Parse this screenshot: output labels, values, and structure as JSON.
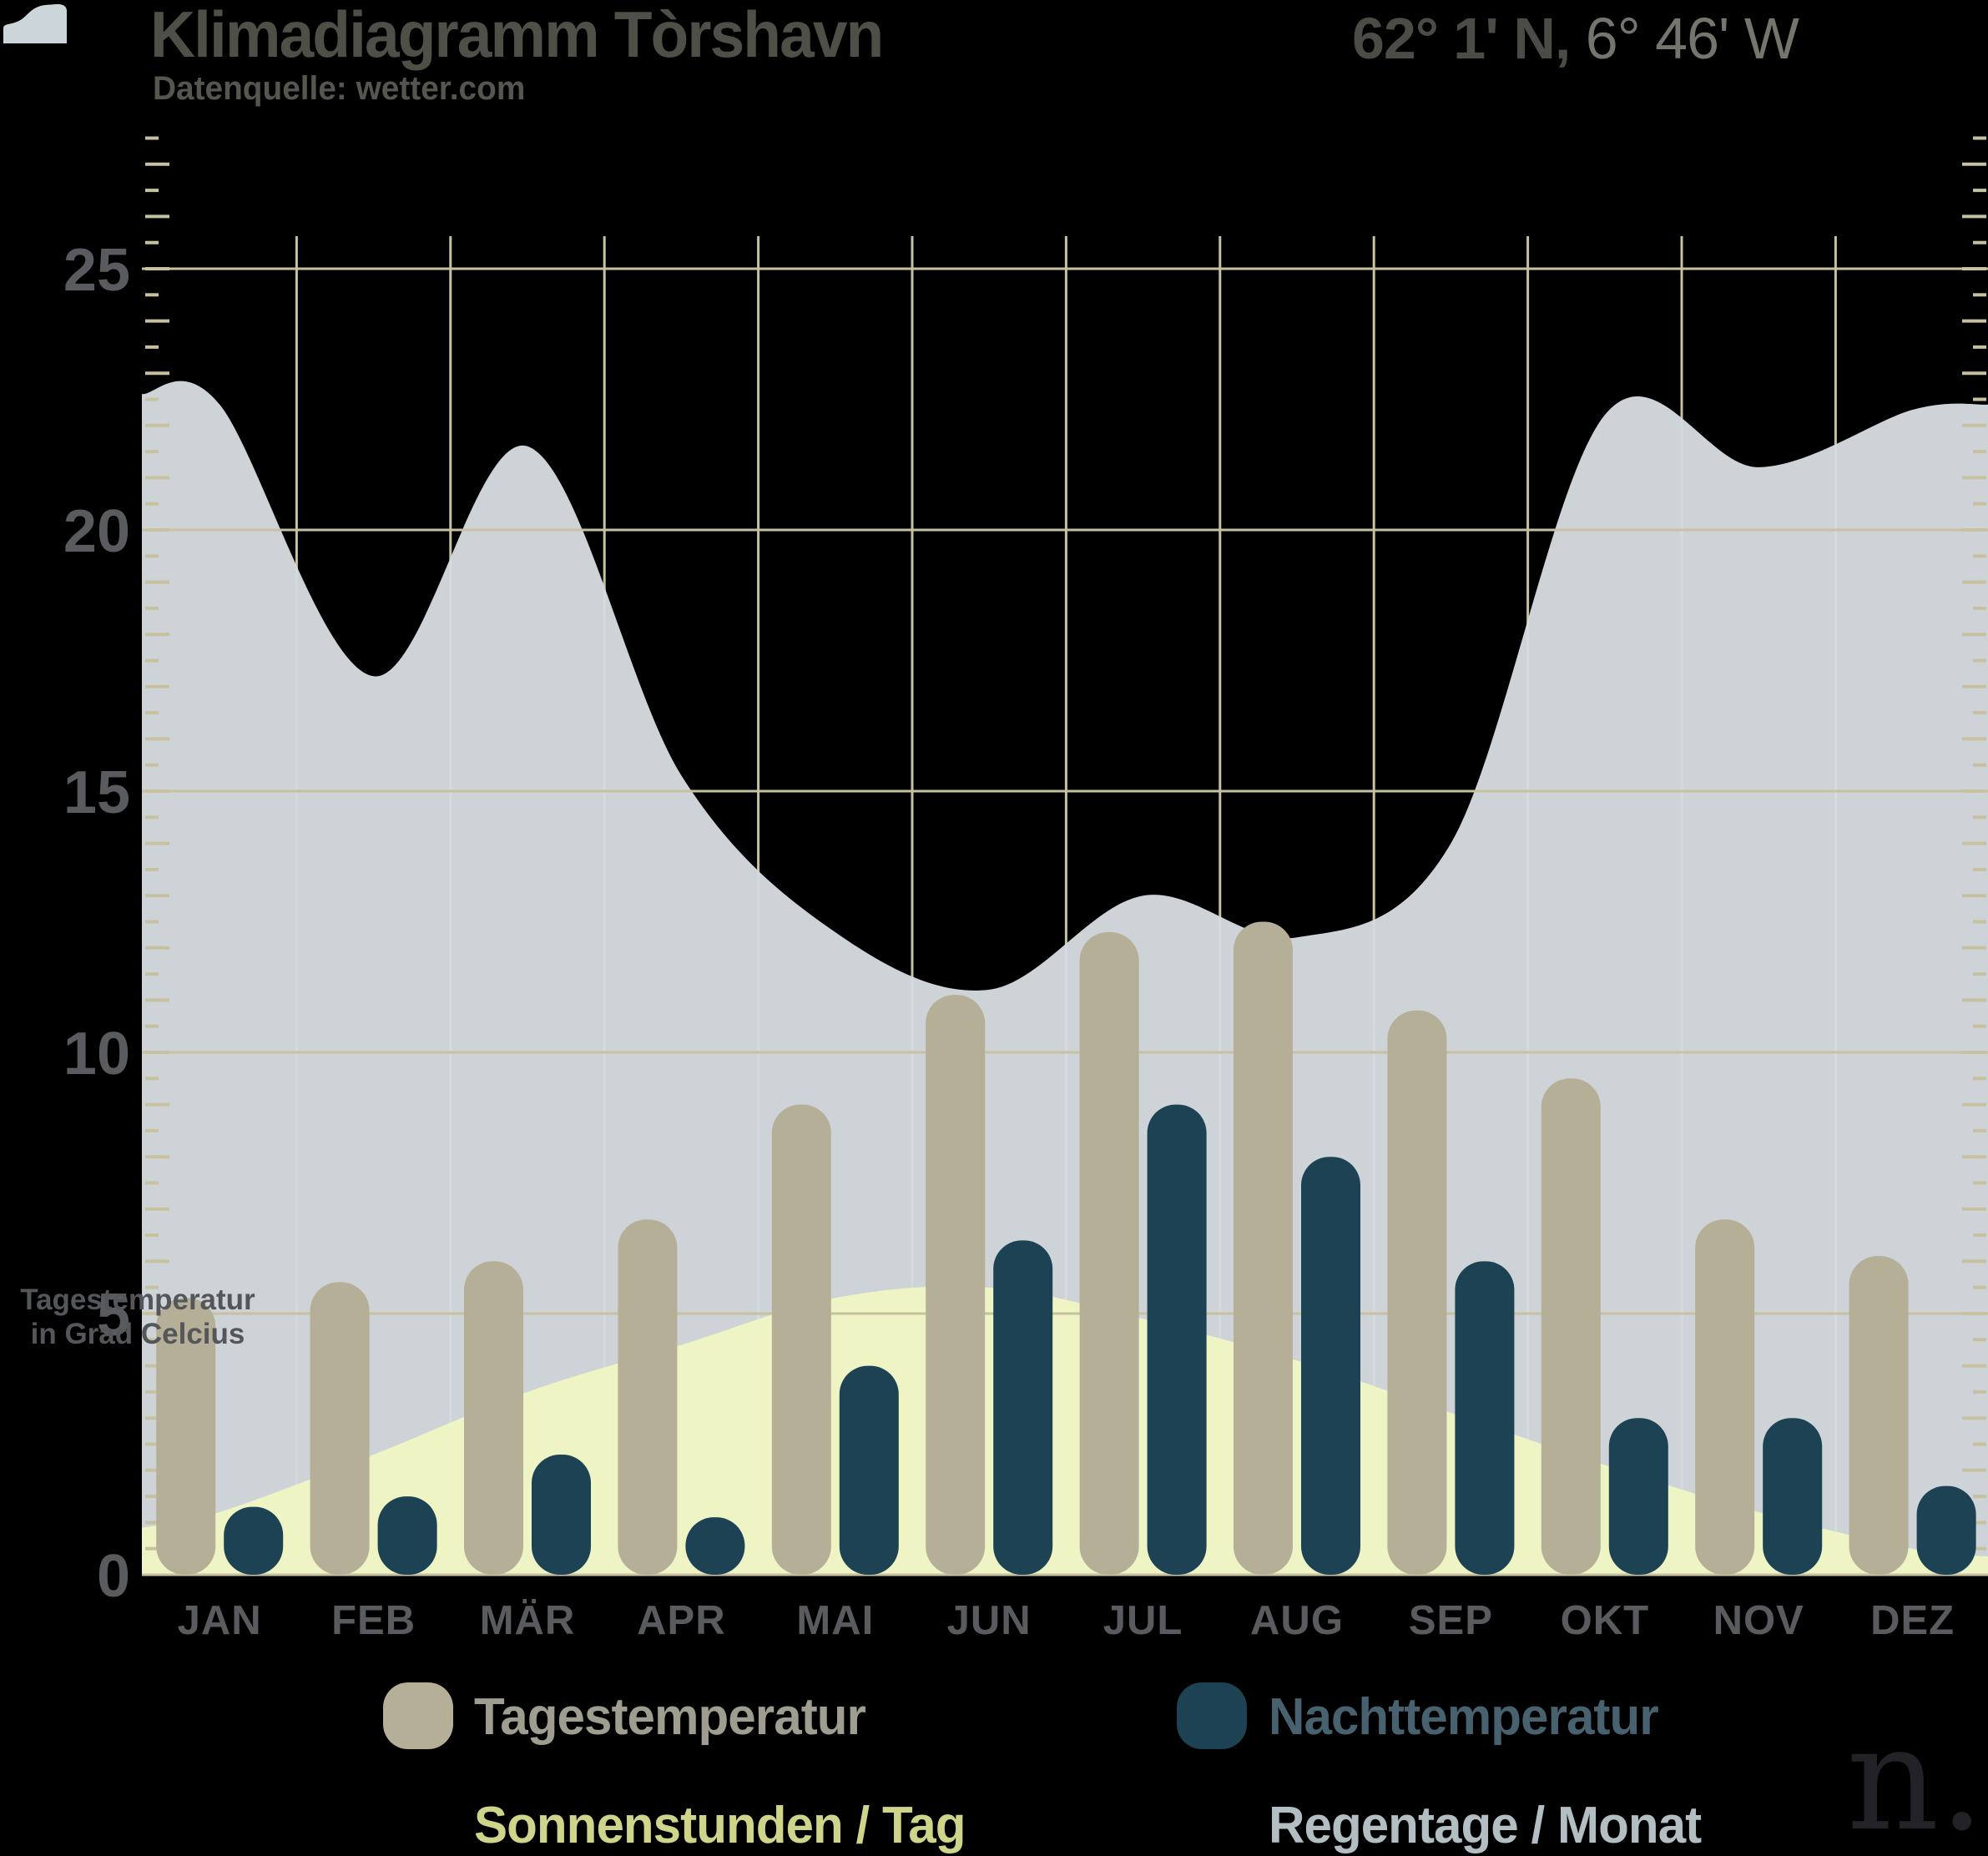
{
  "header": {
    "title": "Klimadiagramm Tòrshavn",
    "subtitle": "Datenquelle: wetter.com",
    "coordinates_bold": "62° 1' N,",
    "coordinates_light": " 6° 46' W"
  },
  "axis_caption": {
    "line1": "Tagestemperatur",
    "line2": "in Grad Celcius"
  },
  "legend": {
    "items": [
      {
        "label": "Tagestemperatur",
        "swatch": "bar-pill",
        "color": "#b4af96",
        "text_color": "#9e9d90"
      },
      {
        "label": "Nachttemperatur",
        "swatch": "bar-pill",
        "color": "#1c4254",
        "text_color": "#48616e"
      },
      {
        "label": "Sonnenstunden / Tag",
        "swatch": "area-wave",
        "color": "#ced489",
        "text_color": "#ced489"
      },
      {
        "label": "Regentage / Monat",
        "swatch": "area-wave",
        "color": "#ccd5d9",
        "text_color": "#b3bec3"
      }
    ]
  },
  "watermark": "n.",
  "chart_data": {
    "type": "bar+area",
    "title": "Klimadiagramm Tòrshavn",
    "categories": [
      "JAN",
      "FEB",
      "MÄR",
      "APR",
      "MAI",
      "JUN",
      "JUL",
      "AUG",
      "SEP",
      "OKT",
      "NOV",
      "DEZ"
    ],
    "series": [
      {
        "name": "Tagestemperatur",
        "type": "bar",
        "color": "#b4af96",
        "values": [
          5.3,
          5.6,
          6.0,
          6.8,
          9.0,
          11.1,
          12.3,
          12.5,
          10.8,
          9.5,
          6.8,
          6.1
        ]
      },
      {
        "name": "Nachttemperatur",
        "type": "bar",
        "color": "#1c4254",
        "values": [
          1.3,
          1.5,
          2.3,
          1.1,
          4.0,
          6.4,
          9.0,
          8.0,
          6.0,
          3.0,
          3.0,
          1.7
        ]
      },
      {
        "name": "Sonnenstunden / Tag",
        "type": "area",
        "color": "#eef5c2",
        "values": [
          1.2,
          2.3,
          3.5,
          4.4,
          5.3,
          5.5,
          4.9,
          4.1,
          3.1,
          2.1,
          1.2,
          0.5
        ],
        "edge_left": 0.9,
        "edge_right": 0.35
      },
      {
        "name": "Regentage / Monat",
        "type": "area",
        "color": "#d5dce0",
        "values": [
          22.4,
          17.2,
          21.6,
          15.3,
          12.3,
          11.2,
          13.0,
          12.2,
          14.0,
          22.2,
          21.2,
          22.3
        ],
        "edge_left": 22.6,
        "edge_right": 22.4
      }
    ],
    "ylabel": "Tagestemperatur in Grad Celcius",
    "ylim": [
      0,
      27.7
    ],
    "ytick_step": 5,
    "ytick_labels": [
      "0",
      "5",
      "10",
      "15",
      "20",
      "25"
    ],
    "minor_tick_step": 0.5,
    "grid": true,
    "grid_color": "#c7c1a0",
    "axis_text_color": "#5a5b5e",
    "legend_position": "bottom"
  }
}
